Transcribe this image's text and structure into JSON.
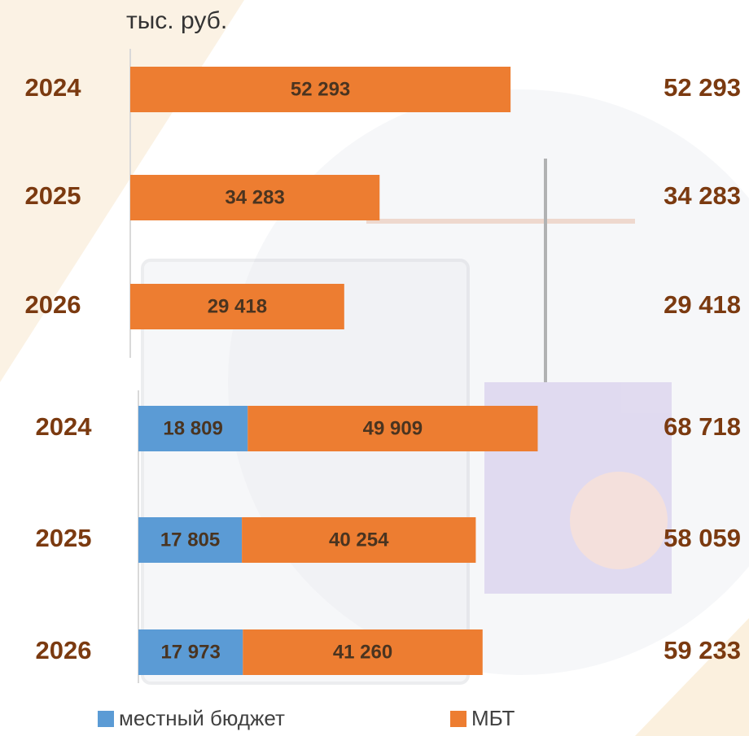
{
  "chart_data": [
    {
      "type": "stacked-bar-horizontal",
      "subtitle": "тыс. руб.",
      "categories": [
        "2024",
        "2025",
        "2026"
      ],
      "series": [
        {
          "name": "МБТ",
          "color": "#ed7d31",
          "values": [
            52293,
            34283,
            29418
          ],
          "value_labels": [
            "52 293",
            "34 283",
            "29 418"
          ]
        }
      ],
      "totals": [
        52293,
        34283,
        29418
      ],
      "total_labels": [
        "52 293",
        "34 283",
        "29 418"
      ],
      "xlim": [
        0,
        60000
      ]
    },
    {
      "type": "stacked-bar-horizontal",
      "categories": [
        "2024",
        "2025",
        "2026"
      ],
      "series": [
        {
          "name": "местный бюджет",
          "color": "#5b9bd5",
          "values": [
            18809,
            17805,
            17973
          ],
          "value_labels": [
            "18 809",
            "17 805",
            "17 973"
          ]
        },
        {
          "name": "МБТ",
          "color": "#ed7d31",
          "values": [
            49909,
            40254,
            41260
          ],
          "value_labels": [
            "49 909",
            "40 254",
            "41 260"
          ]
        }
      ],
      "totals": [
        68718,
        58059,
        59233
      ],
      "total_labels": [
        "68 718",
        "58 059",
        "59 233"
      ],
      "xlim": [
        0,
        80000
      ],
      "legend": "bottom"
    }
  ]
}
